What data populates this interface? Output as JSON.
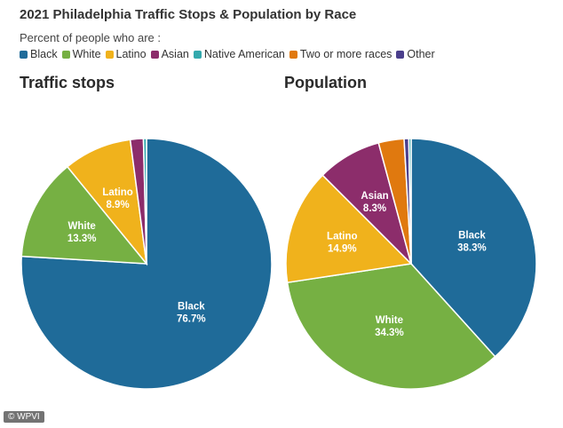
{
  "title": "2021 Philadelphia Traffic Stops & Population by Race",
  "legend": {
    "caption": "Percent of people who are :",
    "items": [
      {
        "label": "Black",
        "color": "#1f6b99"
      },
      {
        "label": "White",
        "color": "#76b043"
      },
      {
        "label": "Latino",
        "color": "#f0b21c"
      },
      {
        "label": "Asian",
        "color": "#8c2d6b"
      },
      {
        "label": "Native American",
        "color": "#33a9ad"
      },
      {
        "label": "Two or more races",
        "color": "#e0790f"
      },
      {
        "label": "Other",
        "color": "#4b3f8c"
      }
    ]
  },
  "credit": "© WPVI",
  "chart_data": [
    {
      "type": "pie",
      "title": "Traffic stops",
      "slices": [
        {
          "name": "Black",
          "value": 76.7,
          "label": "Black",
          "value_label": "76.7%"
        },
        {
          "name": "White",
          "value": 13.3,
          "label": "White",
          "value_label": "13.3%"
        },
        {
          "name": "Latino",
          "value": 8.9,
          "label": "Latino",
          "value_label": "8.9%"
        },
        {
          "name": "Asian",
          "value": 1.7,
          "label": "",
          "value_label": ""
        },
        {
          "name": "Native American",
          "value": 0.4,
          "label": "",
          "value_label": ""
        }
      ]
    },
    {
      "type": "pie",
      "title": "Population",
      "slices": [
        {
          "name": "Black",
          "value": 38.3,
          "label": "Black",
          "value_label": "38.3%"
        },
        {
          "name": "White",
          "value": 34.3,
          "label": "White",
          "value_label": "34.3%"
        },
        {
          "name": "Latino",
          "value": 14.9,
          "label": "Latino",
          "value_label": "14.9%"
        },
        {
          "name": "Asian",
          "value": 8.3,
          "label": "Asian",
          "value_label": "8.3%"
        },
        {
          "name": "Two or more races",
          "value": 3.3,
          "label": "",
          "value_label": ""
        },
        {
          "name": "Other",
          "value": 0.6,
          "label": "",
          "value_label": ""
        },
        {
          "name": "Native American",
          "value": 0.3,
          "label": "",
          "value_label": ""
        }
      ]
    }
  ]
}
